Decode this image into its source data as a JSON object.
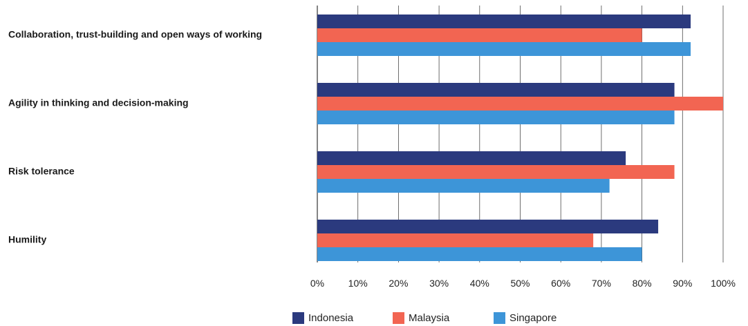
{
  "chart_data": {
    "type": "bar",
    "orientation": "horizontal",
    "categories": [
      "Collaboration, trust-building and open ways of working",
      "Agility in thinking and decision-making",
      "Risk tolerance",
      "Humility"
    ],
    "series": [
      {
        "name": "Indonesia",
        "color": "#2b3a7e",
        "values": [
          92,
          88,
          76,
          84
        ]
      },
      {
        "name": "Malaysia",
        "color": "#f26552",
        "values": [
          80,
          100,
          88,
          68
        ]
      },
      {
        "name": "Singapore",
        "color": "#3d95d8",
        "values": [
          92,
          88,
          72,
          80
        ]
      }
    ],
    "xlim": [
      0,
      100
    ],
    "xticks": [
      0,
      10,
      20,
      30,
      40,
      50,
      60,
      70,
      80,
      90,
      100
    ],
    "xtick_labels": [
      "0%",
      "10%",
      "20%",
      "30%",
      "40%",
      "50%",
      "60%",
      "70%",
      "80%",
      "90%",
      "100%"
    ],
    "grid": true,
    "legend_position": "bottom-center"
  }
}
